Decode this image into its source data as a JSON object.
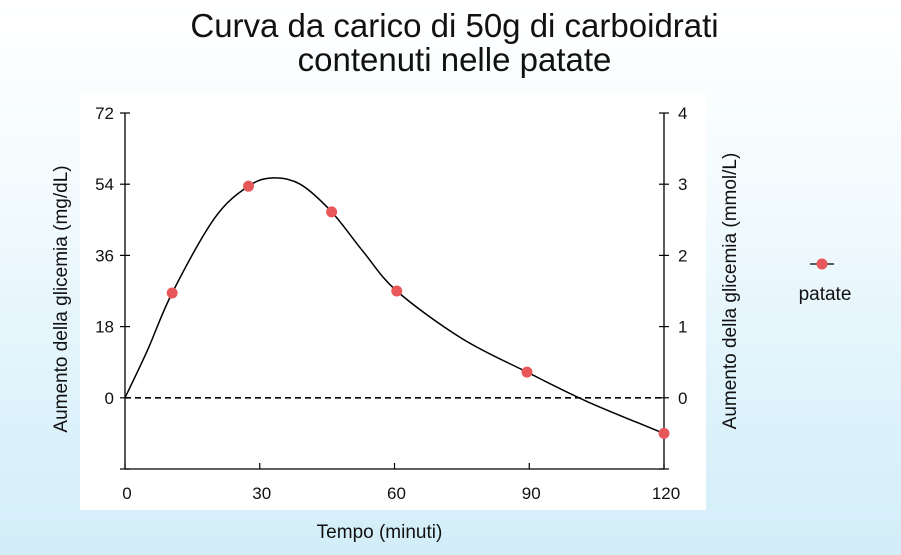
{
  "chart_data": {
    "type": "line",
    "title_lines": [
      "Curva da carico di 50g di carboidrati",
      "contenuti nelle patate"
    ],
    "xlabel": "Tempo (minuti)",
    "ylabel_left": "Aumento della glicemia (mg/dL)",
    "ylabel_right": "Aumento della glicemia (mmol/L)",
    "x_ticks": [
      0,
      30,
      60,
      90,
      120
    ],
    "xlim": [
      0,
      120
    ],
    "y_left_ticks": [
      0,
      18,
      36,
      54,
      72
    ],
    "ylim_left": [
      -18,
      72
    ],
    "y_right_ticks": [
      0,
      1,
      2,
      3,
      4
    ],
    "ylim_right": [
      -1,
      4
    ],
    "baseline": 0,
    "grid": false,
    "legend_position": "right",
    "series": [
      {
        "name": "patate",
        "color": "#e8585a",
        "points": [
          {
            "x": 10.5,
            "y": 26.5
          },
          {
            "x": 27.5,
            "y": 53.5
          },
          {
            "x": 46,
            "y": 47
          },
          {
            "x": 60.5,
            "y": 27
          },
          {
            "x": 89.5,
            "y": 6.5
          },
          {
            "x": 120,
            "y": -9
          }
        ]
      }
    ],
    "curve": {
      "color": "#000000",
      "points": [
        {
          "x": 0,
          "y": 0
        },
        {
          "x": 5,
          "y": 12
        },
        {
          "x": 10.5,
          "y": 26.5
        },
        {
          "x": 20,
          "y": 45.5
        },
        {
          "x": 27.5,
          "y": 53.5
        },
        {
          "x": 33,
          "y": 55.6
        },
        {
          "x": 39,
          "y": 54
        },
        {
          "x": 46,
          "y": 47
        },
        {
          "x": 53,
          "y": 37
        },
        {
          "x": 60.5,
          "y": 27
        },
        {
          "x": 75,
          "y": 15
        },
        {
          "x": 89.5,
          "y": 6.5
        },
        {
          "x": 103,
          "y": -1
        },
        {
          "x": 120,
          "y": -9
        }
      ]
    }
  }
}
